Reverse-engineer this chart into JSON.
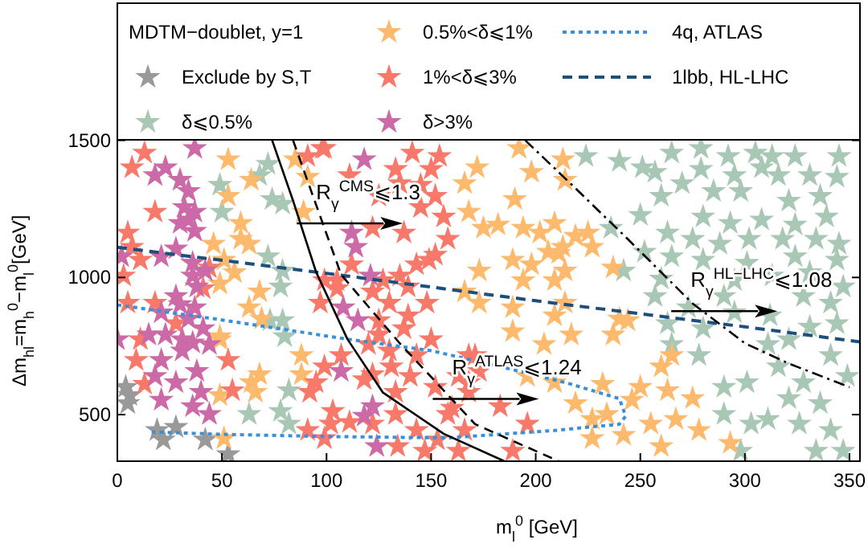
{
  "chart_data": {
    "type": "scatter",
    "xlabel": "m$_{l}$$^{0}$ [GeV]",
    "ylabel": "Δm$_{hl}$=m$_{h}$$^{0}$−m$_{l}$$^{0}$[GeV]",
    "legend_title": "MDTM−doublet, y=1",
    "xlim": [
      0,
      355
    ],
    "ylim": [
      330,
      2000
    ],
    "xticks": [
      0,
      50,
      100,
      150,
      200,
      250,
      300,
      350
    ],
    "yticks": [
      500,
      1000,
      1500
    ],
    "legend": "top",
    "series": [
      {
        "name": "Exclude by S,T",
        "color": "#999999",
        "marker": "star",
        "x": [
          4,
          5,
          19,
          22,
          28,
          42,
          53,
          6
        ],
        "values": [
          600,
          541,
          443,
          408,
          454,
          408,
          355,
          570
        ]
      },
      {
        "name": "δ⩽0.5%",
        "color": "#a8c8b5",
        "marker": "star",
        "x": [
          49,
          50,
          72,
          68,
          74,
          79,
          72,
          79,
          78,
          79,
          73,
          224,
          240,
          251,
          265,
          279,
          292,
          305,
          313,
          324,
          345,
          279,
          257,
          270,
          295,
          308,
          316,
          331,
          344,
          260,
          285,
          298,
          321,
          336,
          250,
          280,
          293,
          308,
          324,
          339,
          236,
          263,
          275,
          288,
          302,
          318,
          334,
          345,
          252,
          265,
          280,
          301,
          324,
          344,
          242,
          260,
          295,
          313,
          331,
          347,
          257,
          273,
          290,
          328,
          341,
          263,
          280,
          295,
          312,
          331,
          344,
          80,
          82,
          78,
          63,
          82,
          265,
          278,
          290,
          301,
          290,
          303,
          298,
          311,
          316,
          321,
          328,
          336,
          326,
          341,
          334,
          347,
          311,
          349,
          341,
          321
        ],
        "values": [
          1337,
          1239,
          1413,
          1372,
          1285,
          1268,
          1076,
          1024,
          966,
          843,
          843,
          1442,
          1424,
          1401,
          1454,
          1471,
          1442,
          1454,
          1442,
          1442,
          1442,
          1395,
          1384,
          1343,
          1372,
          1401,
          1372,
          1372,
          1366,
          1297,
          1314,
          1314,
          1279,
          1297,
          1227,
          1221,
          1198,
          1210,
          1192,
          1221,
          1180,
          1163,
          1140,
          1122,
          1140,
          1140,
          1140,
          1122,
          1093,
          1076,
          1064,
          1053,
          1076,
          1064,
          1024,
          995,
          989,
          1006,
          1018,
          966,
          931,
          890,
          931,
          931,
          907,
          832,
          814,
          872,
          861,
          820,
          832,
          785,
          588,
          512,
          501,
          466,
          756,
          716,
          600,
          617,
          501,
          466,
          367,
          756,
          675,
          559,
          617,
          541,
          466,
          443,
          367,
          367,
          483,
          640,
          716,
          774
        ]
      },
      {
        "name": "0.5%<δ⩽1%",
        "color": "#fdb96c",
        "marker": "star",
        "x": [
          53,
          64,
          53,
          59,
          59,
          63,
          46,
          51,
          56,
          49,
          68,
          63,
          69,
          49,
          85,
          89,
          91,
          192,
          172,
          166,
          198,
          190,
          168,
          175,
          182,
          194,
          202,
          209,
          213,
          206,
          189,
          198,
          173,
          194,
          209,
          166,
          173,
          189,
          209,
          214,
          213,
          214,
          219,
          225,
          227,
          211,
          214,
          237,
          240,
          244,
          237,
          49,
          49,
          64,
          68,
          66,
          88,
          88,
          51,
          189,
          217,
          204,
          196,
          209,
          219,
          227,
          234,
          227,
          242,
          246,
          250,
          263,
          260,
          265,
          255,
          267,
          260,
          275,
          278,
          293,
          232
        ],
        "values": [
          1430,
          1355,
          1297,
          1198,
          1140,
          1122,
          1122,
          1064,
          1018,
          977,
          948,
          890,
          849,
          785,
          1430,
          1239,
          1366,
          1471,
          1401,
          1343,
          1384,
          1285,
          1239,
          1180,
          1192,
          1180,
          1163,
          1198,
          1111,
          1093,
          1064,
          1047,
          1024,
          989,
          989,
          948,
          907,
          890,
          861,
          907,
          1430,
          1355,
          1151,
          1163,
          1111,
          1088,
          1024,
          1035,
          849,
          843,
          791,
          774,
          570,
          617,
          646,
          582,
          716,
          646,
          413,
          803,
          791,
          756,
          640,
          617,
          541,
          483,
          501,
          413,
          425,
          553,
          600,
          588,
          675,
          716,
          466,
          483,
          384,
          559,
          443,
          396,
          611
        ]
      },
      {
        "name": "1%<δ⩽3%",
        "color": "#f8786a",
        "marker": "star",
        "x": [
          13,
          7,
          18,
          5,
          7,
          11,
          3,
          5,
          18,
          11,
          44,
          41,
          98,
          99,
          97,
          105,
          91,
          99,
          141,
          154,
          133,
          150,
          111,
          135,
          145,
          125,
          152,
          145,
          122,
          137,
          156,
          158,
          152,
          149,
          143,
          135,
          127,
          139,
          122,
          130,
          148,
          139,
          125,
          112,
          105,
          120,
          9,
          13,
          53,
          55,
          92,
          99,
          107,
          95,
          103,
          111,
          118,
          122,
          99,
          91,
          102,
          122,
          133,
          130,
          131,
          133,
          134,
          143,
          147,
          140,
          143,
          152,
          158,
          153,
          163,
          150,
          166,
          168,
          171,
          137,
          28,
          125,
          163,
          173,
          168,
          183,
          196,
          189,
          160,
          168
        ],
        "values": [
          1454,
          1401,
          1239,
          1163,
          1111,
          1064,
          1006,
          907,
          907,
          774,
          1035,
          960,
          1471,
          989,
          907,
          960,
          1442,
          1471,
          1454,
          1442,
          1395,
          1395,
          1372,
          1343,
          1337,
          1297,
          1297,
          1256,
          1180,
          1163,
          1221,
          1140,
          1082,
          1064,
          1047,
          1006,
          989,
          966,
          948,
          907,
          907,
          861,
          843,
          1047,
          989,
          756,
          698,
          611,
          698,
          588,
          582,
          675,
          716,
          617,
          512,
          472,
          628,
          646,
          413,
          443,
          466,
          466,
          501,
          733,
          675,
          582,
          384,
          443,
          367,
          640,
          716,
          600,
          501,
          408,
          367,
          774,
          443,
          617,
          716,
          814,
          832,
          791,
          640,
          658,
          582,
          530,
          466,
          367,
          524,
          716
        ]
      },
      {
        "name": "δ>3%",
        "color": "#cc6aa8",
        "marker": "star",
        "x": [
          37,
          18,
          23,
          30,
          34,
          32,
          37,
          30,
          34,
          37,
          28,
          21,
          2,
          36,
          36,
          42,
          38,
          28,
          30,
          37,
          21,
          34,
          15,
          23,
          31,
          41,
          118,
          112,
          114,
          121,
          108,
          115,
          0,
          21,
          18,
          28,
          31,
          38,
          40,
          36,
          44,
          21,
          36,
          44,
          107,
          122,
          118,
          124
        ],
        "values": [
          1471,
          1372,
          1401,
          1355,
          1314,
          1256,
          1239,
          1198,
          1210,
          1169,
          1105,
          1076,
          1076,
          1053,
          1006,
          1024,
          966,
          931,
          902,
          890,
          872,
          849,
          791,
          791,
          774,
          814,
          1430,
          1163,
          1111,
          1006,
          890,
          843,
          774,
          698,
          640,
          617,
          733,
          658,
          582,
          530,
          501,
          553,
          762,
          756,
          658,
          530,
          495,
          384
        ]
      },
      {
        "name": "4q, ATLAS",
        "type": "line",
        "color": "#3a8fd9",
        "line_style": "dotted",
        "x": [
          0,
          50,
          110,
          150,
          183,
          215,
          240,
          243,
          240,
          209,
          158,
          100,
          50,
          15
        ],
        "values": [
          900,
          845,
          775,
          733,
          675,
          615,
          558,
          494,
          465,
          442,
          415,
          420,
          428,
          437
        ]
      },
      {
        "name": "1lbb, HL-LHC",
        "type": "line",
        "color": "#1c4f7c",
        "line_style": "dashed",
        "x": [
          0,
          100,
          200,
          300,
          355
        ],
        "values": [
          1110,
          1015,
          915,
          820,
          765
        ]
      },
      {
        "type": "line",
        "color": "#000000",
        "line_style": "solid",
        "x": [
          74,
          84,
          95,
          110,
          127,
          156,
          185
        ],
        "values": [
          1500,
          1280,
          1020,
          775,
          580,
          430,
          330
        ]
      },
      {
        "type": "line",
        "color": "#000000",
        "line_style": "dashed",
        "x": [
          84,
          99,
          107,
          135,
          171,
          211
        ],
        "values": [
          1500,
          1180,
          1010,
          760,
          465,
          330
        ]
      },
      {
        "type": "line",
        "color": "#000000",
        "line_style": "dashdot",
        "x": [
          195,
          217,
          244,
          275,
          300,
          321,
          350
        ],
        "values": [
          1500,
          1340,
          1140,
          905,
          760,
          686,
          600
        ]
      }
    ],
    "annotations": [
      {
        "text": "R$_{γ}$$^{CMS}$⩽1.3",
        "x": 95,
        "y": 1285
      },
      {
        "text": "R$_{γ}$$^{ATLAS}$⩽1.24",
        "x": 160,
        "y": 645
      },
      {
        "text": "R$_{γ}$$^{HL−LHC}$⩽1.08",
        "x": 274,
        "y": 965
      }
    ]
  }
}
